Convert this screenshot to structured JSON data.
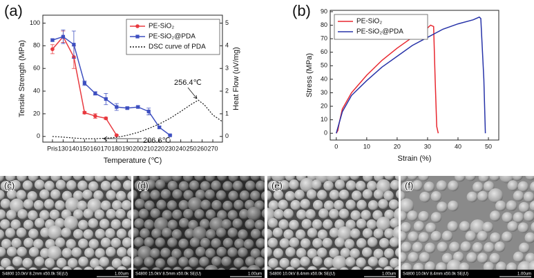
{
  "chart_data": [
    {
      "type": "line",
      "label": "(a)",
      "xlabel": "Temperature (℃)",
      "ylabel": "Tensile Strength (MPa)",
      "y2label": "Heat Flow (uV/mg)",
      "xlim": [
        111,
        279
      ],
      "ylim": [
        -5,
        107
      ],
      "y2lim": [
        -0.25,
        5.35
      ],
      "xticks": [
        {
          "value": 120,
          "label": "Pris"
        },
        130,
        140,
        150,
        160,
        170,
        180,
        190,
        200,
        210,
        220,
        230,
        240,
        250,
        260,
        270
      ],
      "yticks": [
        0,
        20,
        40,
        60,
        80,
        100
      ],
      "y2ticks": [
        0,
        1,
        2,
        3,
        4,
        5
      ],
      "legend": "upper right",
      "series": [
        {
          "name": "PE-SiO₂",
          "color": "#e8393f",
          "marker": "circle",
          "style": "solid",
          "x": [
            120,
            130,
            140,
            150,
            160,
            170,
            180
          ],
          "values": [
            77,
            88,
            70,
            21,
            18,
            16,
            1
          ],
          "errors": [
            4,
            5,
            10,
            1,
            2,
            1,
            0.5
          ]
        },
        {
          "name": "PE-SiO₂@PDA",
          "color": "#3d4fc0",
          "marker": "square",
          "style": "solid",
          "x": [
            120,
            130,
            140,
            150,
            160,
            170,
            180,
            190,
            200,
            210,
            220,
            230
          ],
          "values": [
            85,
            88,
            81,
            47,
            38,
            33,
            26,
            25,
            26,
            22,
            8,
            1
          ],
          "errors": [
            1,
            6,
            12,
            2,
            1.5,
            5,
            3,
            1,
            1,
            3,
            1,
            0.5
          ]
        },
        {
          "name": "DSC curve of PDA",
          "color": "#111111",
          "marker": "none",
          "style": "dotted",
          "axis": "y2",
          "x": [
            120,
            130,
            140,
            150,
            160,
            170,
            180,
            190,
            200,
            210,
            220,
            230,
            240,
            250,
            256.4,
            262,
            270,
            279
          ],
          "values": [
            0,
            -0.03,
            -0.07,
            -0.1,
            -0.1,
            -0.08,
            -0.04,
            0.05,
            0.18,
            0.35,
            0.55,
            0.8,
            1.1,
            1.42,
            1.6,
            1.4,
            0.95,
            0.65
          ]
        }
      ],
      "annotations": [
        "256.4℃",
        "206.6℃"
      ]
    },
    {
      "type": "line",
      "label": "(b)",
      "xlabel": "Strain (%)",
      "ylabel": "Stress (MPa)",
      "xlim": [
        -2,
        53.4
      ],
      "ylim": [
        -5,
        91
      ],
      "xticks": [
        0,
        10,
        20,
        30,
        40,
        50
      ],
      "yticks": [
        0,
        10,
        20,
        30,
        40,
        50,
        60,
        70,
        80,
        90
      ],
      "legend": "upper left",
      "series": [
        {
          "name": "PE-SiO₂",
          "color": "#e8262e",
          "marker": "none",
          "style": "solid",
          "x": [
            0,
            0.5,
            1,
            2,
            5,
            10,
            15,
            20,
            25,
            30,
            31,
            32,
            32.5,
            33,
            33.5
          ],
          "values": [
            0,
            2,
            8,
            18,
            30,
            43,
            54,
            63,
            71,
            78,
            80,
            79,
            40,
            5,
            0
          ]
        },
        {
          "name": "PE-SiO₂@PDA",
          "color": "#2632a8",
          "marker": "none",
          "style": "solid",
          "x": [
            0,
            1,
            2,
            5,
            10,
            15,
            20,
            25,
            30,
            35,
            40,
            45,
            47,
            47.5,
            48.5,
            49
          ],
          "values": [
            0,
            8,
            16,
            28,
            39,
            49,
            57,
            65,
            71,
            77,
            81,
            84,
            86,
            85,
            40,
            0
          ]
        }
      ]
    }
  ],
  "images": [
    {
      "label": "(c)",
      "footer": "S4800 10.0kV 8.2mm x50.0k SE(U)",
      "scale": "1.00um"
    },
    {
      "label": "(d)",
      "footer": "S4800 15.0kV 8.5mm x50.0k SE(U)",
      "scale": "1.00um"
    },
    {
      "label": "(e)",
      "footer": "S4800 10.0kV 8.4mm x50.0k SE(U)",
      "scale": "1.00um"
    },
    {
      "label": "(f)",
      "footer": "S4800 10.0kV 8.4mm x50.0k SE(U)",
      "scale": "1.00um"
    }
  ]
}
